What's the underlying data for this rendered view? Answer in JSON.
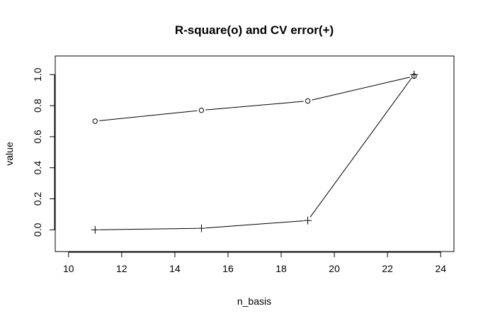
{
  "chart_data": {
    "type": "line",
    "title": "R-square(o) and CV error(+)",
    "xlabel": "n_basis",
    "ylabel": "value",
    "xlim": [
      9.5,
      24.5
    ],
    "ylim": [
      -0.14,
      1.12
    ],
    "xticks": [
      10,
      12,
      14,
      16,
      18,
      20,
      22,
      24
    ],
    "yticks": [
      0.0,
      0.2,
      0.4,
      0.6,
      0.8,
      1.0
    ],
    "ytick_labels": [
      "0.0",
      "0.2",
      "0.4",
      "0.6",
      "0.8",
      "1.0"
    ],
    "grid": false,
    "x": [
      11,
      15,
      19,
      23
    ],
    "series": [
      {
        "marker": "circle",
        "values": [
          0.7,
          0.77,
          0.83,
          0.99
        ]
      },
      {
        "marker": "plus",
        "values": [
          0.0,
          0.01,
          0.06,
          1.0
        ]
      }
    ]
  }
}
